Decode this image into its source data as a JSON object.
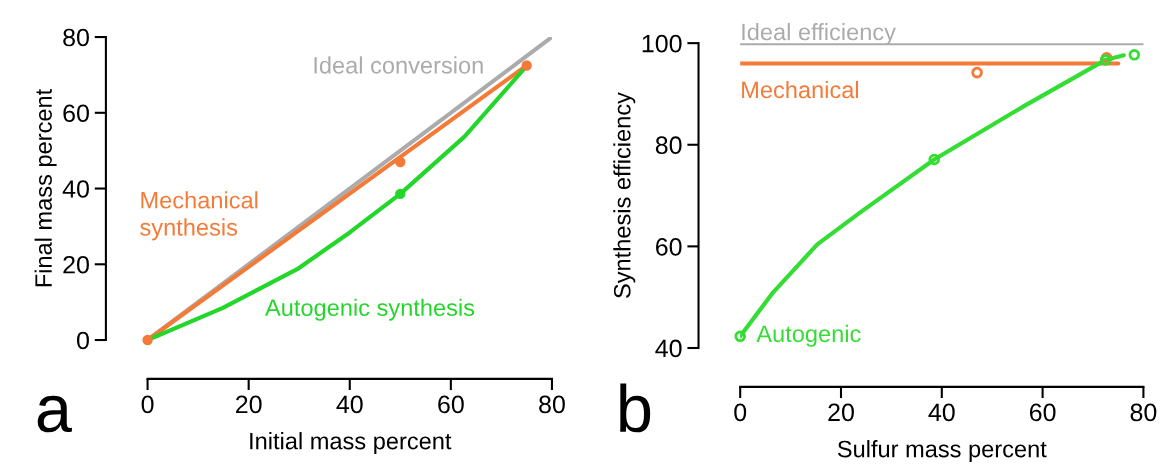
{
  "chart_data": [
    {
      "type": "line",
      "xlabel": "Initial mass percent",
      "ylabel": "Final mass percent",
      "xlim": [
        0,
        80
      ],
      "ylim": [
        0,
        80
      ],
      "xticks": [
        0,
        20,
        40,
        60,
        80
      ],
      "yticks": [
        0,
        20,
        40,
        60,
        80
      ],
      "grid": false,
      "legend": false,
      "annotations": [
        "a"
      ],
      "series": [
        {
          "name": "Ideal conversion",
          "color": "#ababab",
          "x": [
            0,
            80
          ],
          "values": [
            0,
            80
          ]
        },
        {
          "name": "Mechanical\nsynthesis",
          "color": "#f47a38",
          "x": [
            0,
            75
          ],
          "values": [
            0,
            72.5
          ]
        },
        {
          "name": "Autogenic synthesis",
          "color": "#22d62a",
          "x": [
            0,
            14.9,
            29.6,
            40,
            50,
            62.7,
            75
          ],
          "values": [
            0,
            8.5,
            18.7,
            28.4,
            38.6,
            53.7,
            72.4
          ]
        },
        {
          "color": "#f47a38",
          "type": "scatter",
          "marker": "circle",
          "x": [
            0,
            50,
            75
          ],
          "values": [
            0,
            47,
            72.5
          ]
        },
        {
          "color": "#22d62a",
          "type": "scatter",
          "marker": "circle",
          "x": [
            50
          ],
          "values": [
            38.6
          ]
        }
      ]
    },
    {
      "type": "line",
      "xlabel": "Sulfur mass percent",
      "ylabel": "Synthesis efficiency",
      "xlim": [
        0,
        80
      ],
      "ylim": [
        40,
        100
      ],
      "xticks": [
        0,
        20,
        40,
        60,
        80
      ],
      "yticks": [
        40,
        60,
        80,
        100
      ],
      "grid": false,
      "legend": false,
      "annotations": [
        "b"
      ],
      "series": [
        {
          "name": "Ideal efficiency",
          "color": "#ababab",
          "x": [
            0,
            80
          ],
          "values": [
            100,
            100
          ]
        },
        {
          "name": "Mechanical",
          "color": "#f47a38",
          "x": [
            0,
            75
          ],
          "values": [
            96,
            96
          ]
        },
        {
          "name": "Autogenic",
          "color": "#33dd33",
          "x": [
            0,
            6.5,
            15.3,
            24.1,
            38.5,
            56.3,
            72.5,
            76.1
          ],
          "values": [
            42.3,
            50.9,
            60.4,
            66.9,
            77.1,
            87.6,
            96.7,
            97.6
          ]
        },
        {
          "color": "#f47a38",
          "type": "scatter",
          "marker": "circle",
          "x": [
            47,
            72.7
          ],
          "values": [
            94.2,
            97.1
          ]
        },
        {
          "color": "#33dd33",
          "type": "scatter",
          "marker": "circle",
          "x": [
            0,
            38.5,
            72.5,
            78.2
          ],
          "values": [
            42.3,
            77.1,
            96.7,
            97.7
          ]
        }
      ]
    }
  ]
}
